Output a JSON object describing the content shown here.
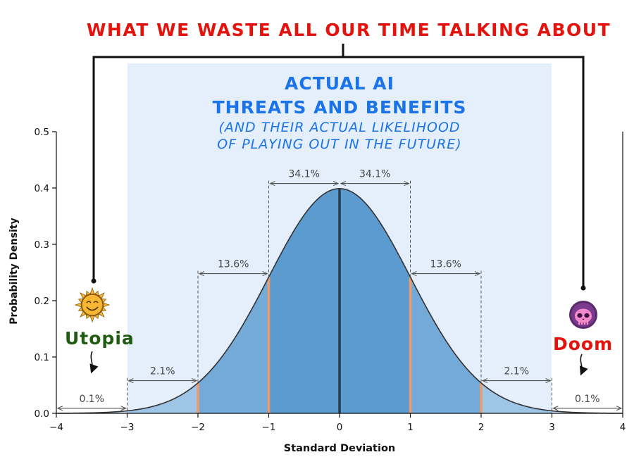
{
  "banner": {
    "text": "WHAT WE WASTE ALL OUR TIME TALKING ABOUT"
  },
  "center": {
    "line1": "ACTUAL AI",
    "line2": "THREATS AND BENEFITS",
    "line3": "(AND THEIR ACTUAL LIKELIHOOD",
    "line4": "OF PLAYING OUT IN THE FUTURE)"
  },
  "sides": {
    "left": {
      "label": "Utopia",
      "icon": "smiling-sun-icon"
    },
    "right": {
      "label": "Doom",
      "icon": "pink-skull-icon"
    }
  },
  "colors": {
    "banner": "#e3140d",
    "title": "#1a73e8",
    "utopia": "#1f5c12",
    "doom": "#e3140d",
    "highlight_band": "#e4effb",
    "fill_inner": "#5b9bd0",
    "fill_middle": "#74aad8",
    "fill_outer": "#9ec4e6",
    "fill_tail": "#c0d8ef",
    "curve": "#333333",
    "sigma_lines": "#ef9a68",
    "mean_line": "#2b3a4a",
    "annot": "#555555"
  },
  "chart_data": {
    "type": "area",
    "xlabel": "Standard Deviation",
    "ylabel": "Probability Density",
    "xlim": [
      -4,
      4
    ],
    "ylim": [
      0,
      0.5
    ],
    "x_ticks": [
      -4,
      -3,
      -2,
      -1,
      0,
      1,
      2,
      3,
      4
    ],
    "x_tick_labels": [
      "−4",
      "−3",
      "−2",
      "−1",
      "0",
      "1",
      "2",
      "3",
      "4"
    ],
    "y_ticks": [
      0.0,
      0.1,
      0.2,
      0.3,
      0.4,
      0.5
    ],
    "y_tick_labels": [
      "0.0",
      "0.1",
      "0.2",
      "0.3",
      "0.4",
      "0.5"
    ],
    "grid": false,
    "series": [
      {
        "distribution": "standard normal",
        "mean": 0,
        "std": 1
      }
    ],
    "mean_line": 0,
    "sigma_lines": [
      -2,
      -1,
      1,
      2
    ],
    "region_labels": [
      {
        "label": "34.1%",
        "x_from": -1,
        "x_to": 0,
        "y": 0.408
      },
      {
        "label": "34.1%",
        "x_from": 0,
        "x_to": 1,
        "y": 0.408
      },
      {
        "label": "13.6%",
        "x_from": -2,
        "x_to": -1,
        "y": 0.248
      },
      {
        "label": "13.6%",
        "x_from": 1,
        "x_to": 2,
        "y": 0.248
      },
      {
        "label": "2.1%",
        "x_from": -3,
        "x_to": -2,
        "y": 0.058
      },
      {
        "label": "2.1%",
        "x_from": 2,
        "x_to": 3,
        "y": 0.058
      },
      {
        "label": "0.1%",
        "x_from": -4,
        "x_to": -3,
        "y": 0.009
      },
      {
        "label": "0.1%",
        "x_from": 3,
        "x_to": 4,
        "y": 0.009
      }
    ]
  }
}
